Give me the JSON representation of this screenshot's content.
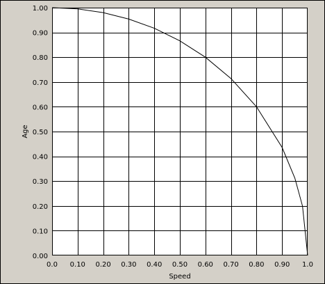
{
  "chart_data": {
    "type": "line",
    "title": "",
    "xlabel": "Speed",
    "ylabel": "Age",
    "xlim": [
      0,
      1
    ],
    "ylim": [
      0,
      1
    ],
    "grid": true,
    "legend": "none",
    "x_ticks": [
      "0.0",
      "0.10",
      "0.20",
      "0.30",
      "0.40",
      "0.50",
      "0.60",
      "0.70",
      "0.80",
      "0.90",
      "1.0"
    ],
    "y_ticks": [
      "0.00",
      "0.10",
      "0.20",
      "0.30",
      "0.40",
      "0.50",
      "0.60",
      "0.70",
      "0.80",
      "0.90",
      "1.00"
    ],
    "series": [
      {
        "x": [
          0.0,
          0.1,
          0.2,
          0.3,
          0.4,
          0.5,
          0.6,
          0.7,
          0.8,
          0.9,
          0.95,
          0.98,
          1.0
        ],
        "y": [
          1.0,
          0.995,
          0.98,
          0.954,
          0.917,
          0.866,
          0.8,
          0.714,
          0.6,
          0.436,
          0.312,
          0.199,
          0.0
        ]
      }
    ],
    "colors": {
      "plot_background": "#ffffff",
      "frame_background": "#d4d0c8",
      "grid": "#000000",
      "line": "#000000"
    }
  }
}
